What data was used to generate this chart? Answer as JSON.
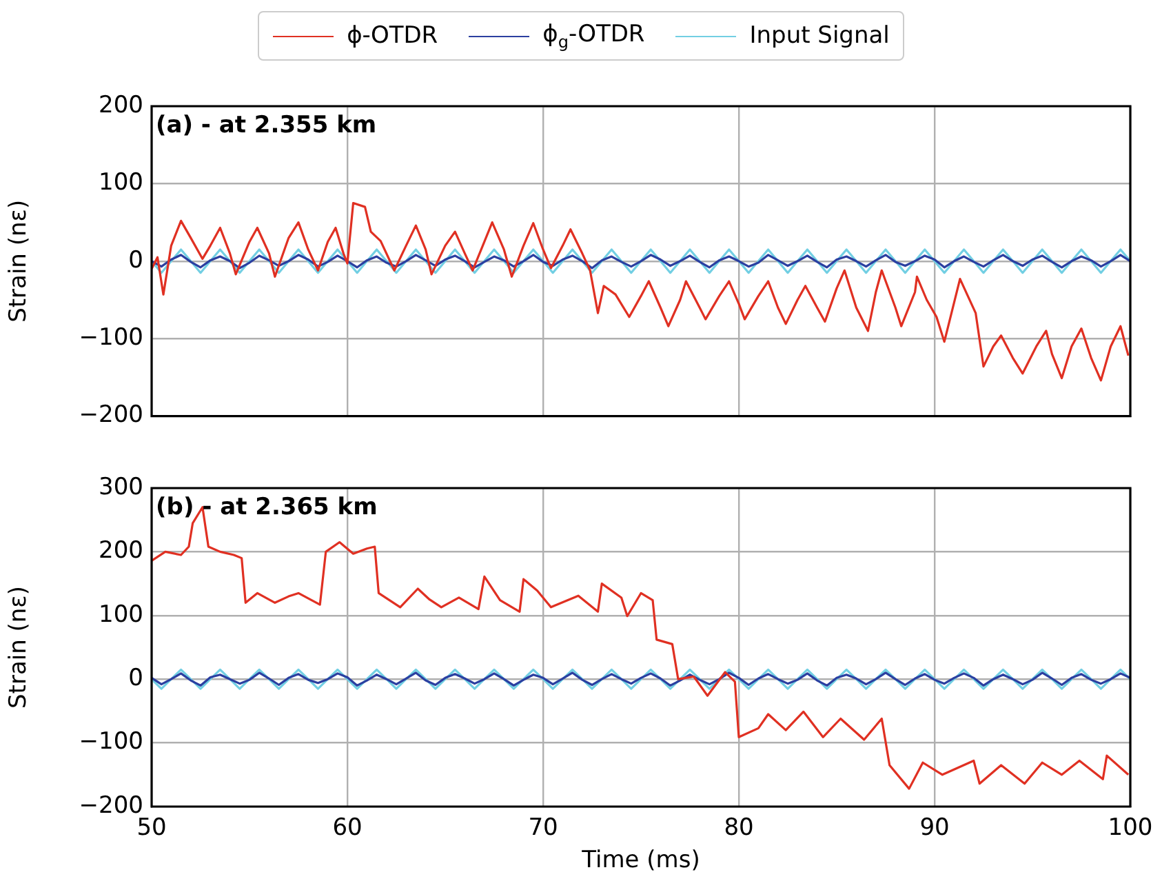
{
  "chart_data": [
    {
      "type": "line",
      "title": "(a) - at 2.355 km",
      "ylabel": "Strain (nε)",
      "xlim": [
        50,
        100
      ],
      "xticks": [
        50,
        60,
        70,
        80,
        90,
        100
      ],
      "ylim": [
        -200,
        200
      ],
      "yticks": [
        -200,
        -100,
        0,
        100,
        200
      ],
      "tick_labels": "y",
      "grid": true,
      "legend": "top",
      "marker": "none",
      "line_style": "solid",
      "x": [
        50,
        50.5,
        51,
        51.5,
        52,
        52.5,
        53,
        53.5,
        54,
        54.5,
        55,
        55.5,
        56,
        56.5,
        57,
        57.5,
        58,
        58.5,
        59,
        59.5,
        60,
        60.5,
        61,
        61.5,
        62,
        62.5,
        63,
        63.5,
        64,
        64.5,
        65,
        65.5,
        66,
        66.5,
        67,
        67.5,
        68,
        68.5,
        69,
        69.5,
        70,
        70.5,
        71,
        71.5,
        72,
        72.5,
        73,
        73.5,
        74,
        74.5,
        75,
        75.5,
        76,
        76.5,
        77,
        77.5,
        78,
        78.5,
        79,
        79.5,
        80,
        80.5,
        81,
        81.5,
        82,
        82.5,
        83,
        83.5,
        84,
        84.5,
        85,
        85.5,
        86,
        86.5,
        87,
        87.5,
        88,
        88.5,
        89,
        89.5,
        90,
        90.5,
        91,
        91.5,
        92,
        92.5,
        93,
        93.5,
        94,
        94.5,
        95,
        95.5,
        96,
        96.5,
        97,
        97.5,
        98,
        98.5,
        99,
        99.5,
        100
      ],
      "series": [
        {
          "name": "ϕ-OTDR",
          "color": "#e03022",
          "x": [
            50,
            50.3,
            50.6,
            51,
            51.5,
            52,
            52.6,
            53,
            53.5,
            54,
            54.3,
            55,
            55.4,
            56,
            56.3,
            57,
            57.5,
            58,
            58.5,
            59,
            59.4,
            59.8,
            60,
            60.3,
            60.9,
            61.2,
            61.7,
            62.4,
            63,
            63.5,
            64,
            64.3,
            65,
            65.5,
            66,
            66.4,
            67,
            67.4,
            68,
            68.4,
            69,
            69.5,
            70,
            70.4,
            71,
            71.4,
            72,
            72.4,
            72.8,
            73.1,
            73.7,
            74.4,
            75,
            75.4,
            76,
            76.4,
            77,
            77.3,
            78,
            78.3,
            79,
            79.5,
            80,
            80.3,
            81,
            81.5,
            82,
            82.4,
            83,
            83.4,
            84,
            84.4,
            85,
            85.4,
            86,
            86.6,
            87,
            87.3,
            88,
            88.3,
            89,
            89.1,
            89.6,
            90.1,
            90.5,
            91.3,
            92.1,
            92.5,
            93,
            93.4,
            94,
            94.5,
            95.2,
            95.7,
            96,
            96.5,
            97,
            97.5,
            98,
            98.5,
            99,
            99.5,
            99.9
          ],
          "values": [
            -10,
            5,
            -43,
            20,
            52,
            30,
            3,
            20,
            43,
            10,
            -17,
            25,
            43,
            10,
            -20,
            30,
            50,
            15,
            -12,
            25,
            43,
            10,
            -3,
            75,
            70,
            38,
            26,
            -12,
            20,
            46,
            15,
            -17,
            20,
            38,
            10,
            -12,
            25,
            50,
            15,
            -20,
            20,
            49,
            15,
            -9,
            20,
            41,
            10,
            -12,
            -67,
            -32,
            -43,
            -72,
            -45,
            -26,
            -60,
            -84,
            -50,
            -26,
            -60,
            -75,
            -45,
            -26,
            -55,
            -75,
            -45,
            -26,
            -60,
            -81,
            -50,
            -32,
            -60,
            -78,
            -35,
            -12,
            -60,
            -90,
            -40,
            -12,
            -60,
            -84,
            -40,
            -20,
            -50,
            -72,
            -104,
            -23,
            -67,
            -136,
            -110,
            -96,
            -125,
            -145,
            -110,
            -90,
            -120,
            -151,
            -110,
            -87,
            -125,
            -154,
            -110,
            -84,
            -122
          ]
        },
        {
          "name": "ϕ$_{g}$-OTDR",
          "color": "#2b3fa0",
          "values": [
            0,
            -7,
            2,
            8,
            -1,
            -8,
            1,
            6,
            0,
            -9,
            -2,
            7,
            1,
            -6,
            0,
            8,
            2,
            -7,
            -1,
            7,
            0,
            -8,
            1,
            6,
            -2,
            -7,
            0,
            8,
            1,
            -6,
            2,
            7,
            0,
            -8,
            -1,
            6,
            1,
            -7,
            0,
            8,
            -1,
            -6,
            2,
            7,
            0,
            -9,
            1,
            6,
            -1,
            -7,
            0,
            8,
            2,
            -6,
            0,
            7,
            -1,
            -8,
            1,
            6,
            0,
            -7,
            -2,
            8,
            1,
            -6,
            0,
            7,
            -1,
            -8,
            2,
            6,
            0,
            -7,
            1,
            8,
            -1,
            -6,
            0,
            7,
            2,
            -8,
            0,
            6,
            -1,
            -7,
            1,
            8,
            0,
            -6,
            2,
            7,
            -1,
            -8,
            0,
            6,
            1,
            -7,
            0,
            8,
            0
          ]
        },
        {
          "name": "Input Signal",
          "color": "#72cfe3",
          "values": [
            0,
            -15,
            0,
            15,
            0,
            -15,
            0,
            15,
            0,
            -15,
            0,
            15,
            0,
            -15,
            0,
            15,
            0,
            -15,
            0,
            15,
            0,
            -15,
            0,
            15,
            0,
            -15,
            0,
            15,
            0,
            -15,
            0,
            15,
            0,
            -15,
            0,
            15,
            0,
            -15,
            0,
            15,
            0,
            -15,
            0,
            15,
            0,
            -15,
            0,
            15,
            0,
            -15,
            0,
            15,
            0,
            -15,
            0,
            15,
            0,
            -15,
            0,
            15,
            0,
            -15,
            0,
            15,
            0,
            -15,
            0,
            15,
            0,
            -15,
            0,
            15,
            0,
            -15,
            0,
            15,
            0,
            -15,
            0,
            15,
            0,
            -15,
            0,
            15,
            0,
            -15,
            0,
            15,
            0,
            -15,
            0,
            15,
            0,
            -15,
            0,
            15,
            0,
            -15,
            0,
            15,
            0
          ]
        }
      ]
    },
    {
      "type": "line",
      "title": "(b) - at 2.365 km",
      "xlabel": "Time (ms)",
      "ylabel": "Strain (nε)",
      "xlim": [
        50,
        100
      ],
      "xticks": [
        50,
        60,
        70,
        80,
        90,
        100
      ],
      "ylim": [
        -200,
        300
      ],
      "yticks": [
        -200,
        -100,
        0,
        100,
        200,
        300
      ],
      "grid": true,
      "marker": "none",
      "line_style": "solid",
      "x": [
        50,
        50.5,
        51,
        51.5,
        52,
        52.5,
        53,
        53.5,
        54,
        54.5,
        55,
        55.5,
        56,
        56.5,
        57,
        57.5,
        58,
        58.5,
        59,
        59.5,
        60,
        60.5,
        61,
        61.5,
        62,
        62.5,
        63,
        63.5,
        64,
        64.5,
        65,
        65.5,
        66,
        66.5,
        67,
        67.5,
        68,
        68.5,
        69,
        69.5,
        70,
        70.5,
        71,
        71.5,
        72,
        72.5,
        73,
        73.5,
        74,
        74.5,
        75,
        75.5,
        76,
        76.5,
        77,
        77.5,
        78,
        78.5,
        79,
        79.5,
        80,
        80.5,
        81,
        81.5,
        82,
        82.5,
        83,
        83.5,
        84,
        84.5,
        85,
        85.5,
        86,
        86.5,
        87,
        87.5,
        88,
        88.5,
        89,
        89.5,
        90,
        90.5,
        91,
        91.5,
        92,
        92.5,
        93,
        93.5,
        94,
        94.5,
        95,
        95.5,
        96,
        96.5,
        97,
        97.5,
        98,
        98.5,
        99,
        99.5,
        100
      ],
      "series": [
        {
          "color": "#e03022",
          "x": [
            50,
            50.7,
            51.5,
            51.9,
            52.1,
            52.6,
            52.9,
            53.5,
            54.2,
            54.6,
            54.8,
            55.4,
            56.3,
            57,
            57.5,
            58.6,
            58.9,
            59.6,
            60.3,
            61,
            61.4,
            61.6,
            62.7,
            63.6,
            64.2,
            64.8,
            65.7,
            66.7,
            67,
            67.8,
            68.8,
            69,
            69.7,
            70.4,
            71.8,
            72.8,
            73,
            74,
            74.3,
            75,
            75.6,
            75.8,
            76.6,
            76.9,
            77.7,
            78.4,
            79.3,
            79.8,
            80,
            81,
            81.5,
            82.4,
            83.3,
            84.3,
            85.2,
            86.4,
            87.3,
            87.7,
            88.7,
            89.4,
            90.4,
            92,
            92.3,
            93.4,
            94.6,
            95.5,
            96.5,
            97.4,
            98.6,
            98.8,
            99.9
          ],
          "values": [
            186,
            200,
            195,
            208,
            245,
            270,
            208,
            200,
            195,
            190,
            120,
            135,
            120,
            130,
            135,
            117,
            200,
            215,
            197,
            205,
            208,
            135,
            113,
            142,
            125,
            113,
            128,
            110,
            161,
            124,
            106,
            157,
            139,
            113,
            131,
            106,
            150,
            128,
            99,
            135,
            124,
            62,
            55,
            0,
            4,
            -26,
            11,
            -4,
            -91,
            -77,
            -55,
            -80,
            -51,
            -91,
            -62,
            -95,
            -62,
            -135,
            -172,
            -131,
            -150,
            -128,
            -164,
            -135,
            -164,
            -131,
            -150,
            -128,
            -157,
            -120,
            -150
          ]
        },
        {
          "color": "#2b3fa0",
          "values": [
            2,
            -8,
            0,
            9,
            -2,
            -10,
            3,
            7,
            0,
            -7,
            -1,
            10,
            1,
            -9,
            2,
            8,
            -1,
            -6,
            0,
            9,
            3,
            -10,
            -2,
            7,
            0,
            -8,
            1,
            10,
            -2,
            -9,
            2,
            8,
            1,
            -7,
            0,
            9,
            0,
            -10,
            -1,
            7,
            2,
            -8,
            1,
            10,
            -1,
            -9,
            0,
            8,
            0,
            -7,
            2,
            9,
            1,
            -10,
            -2,
            7,
            -1,
            -8,
            0,
            10,
            2,
            -9,
            1,
            8,
            0,
            -7,
            -1,
            9,
            -2,
            -10,
            2,
            7,
            1,
            -8,
            0,
            10,
            0,
            -9,
            1,
            8,
            -1,
            -7,
            2,
            9,
            2,
            -10,
            0,
            7,
            0,
            -8,
            -1,
            10,
            1,
            -9,
            2,
            8,
            -1,
            -7,
            0,
            9,
            2
          ]
        },
        {
          "color": "#72cfe3",
          "values": [
            0,
            -15,
            0,
            15,
            0,
            -15,
            0,
            15,
            0,
            -15,
            0,
            15,
            0,
            -15,
            0,
            15,
            0,
            -15,
            0,
            15,
            0,
            -15,
            0,
            15,
            0,
            -15,
            0,
            15,
            0,
            -15,
            0,
            15,
            0,
            -15,
            0,
            15,
            0,
            -15,
            0,
            15,
            0,
            -15,
            0,
            15,
            0,
            -15,
            0,
            15,
            0,
            -15,
            0,
            15,
            0,
            -15,
            0,
            15,
            0,
            -15,
            0,
            15,
            0,
            -15,
            0,
            15,
            0,
            -15,
            0,
            15,
            0,
            -15,
            0,
            15,
            0,
            -15,
            0,
            15,
            0,
            -15,
            0,
            15,
            0,
            -15,
            0,
            15,
            0,
            -15,
            0,
            15,
            0,
            -15,
            0,
            15,
            0,
            -15,
            0,
            15,
            0,
            -15,
            0,
            15,
            0
          ]
        }
      ]
    }
  ]
}
